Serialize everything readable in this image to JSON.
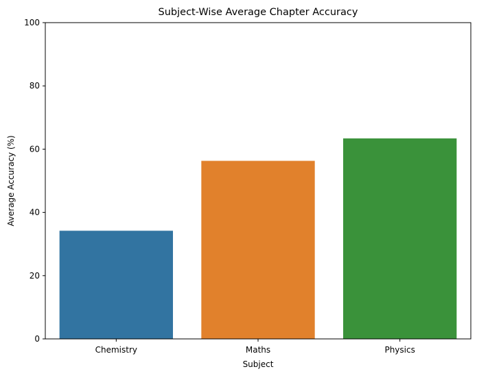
{
  "chart_data": {
    "type": "bar",
    "title": "Subject-Wise Average Chapter Accuracy",
    "xlabel": "Subject",
    "ylabel": "Average Accuracy (%)",
    "categories": [
      "Chemistry",
      "Maths",
      "Physics"
    ],
    "values": [
      34.2,
      56.3,
      63.4
    ],
    "colors": [
      "#3274a1",
      "#e1812c",
      "#3a923a"
    ],
    "ylim": [
      0,
      100
    ],
    "yticks": [
      0,
      20,
      40,
      60,
      80,
      100
    ],
    "grid": false,
    "legend": "none"
  }
}
